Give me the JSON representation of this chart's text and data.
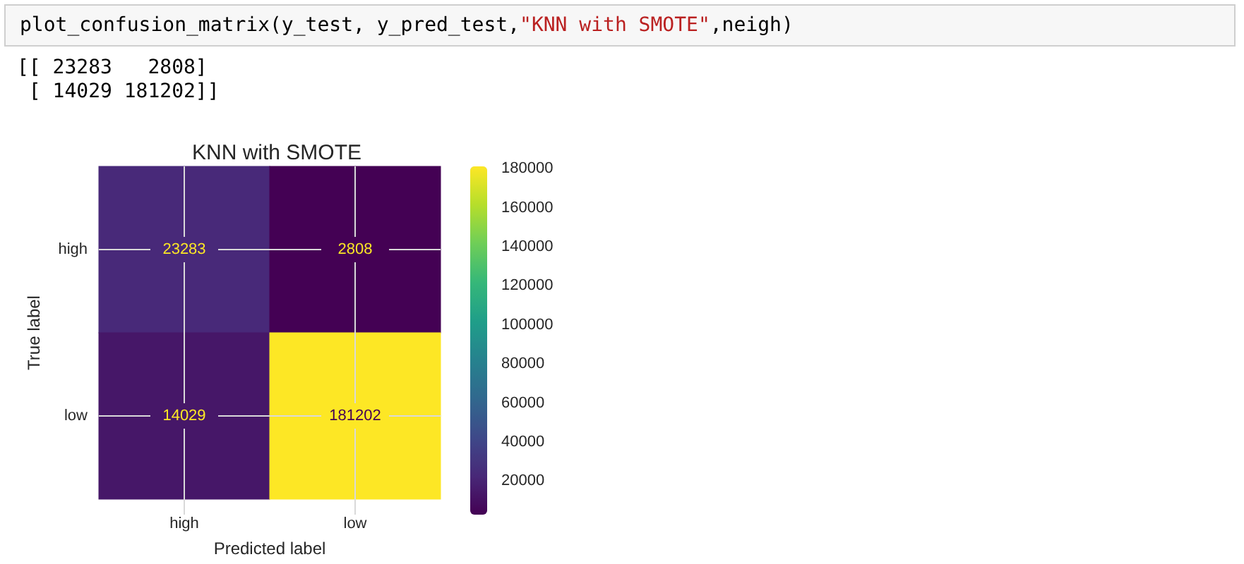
{
  "chart_data": {
    "type": "heatmap",
    "title": "KNN with SMOTE",
    "xlabel": "Predicted label",
    "ylabel": "True label",
    "categories": [
      "high",
      "low"
    ],
    "y_categories": [
      "high",
      "low"
    ],
    "cells": [
      [
        23283,
        2808
      ],
      [
        14029,
        181202
      ]
    ],
    "clim": [
      2808,
      181202
    ],
    "cticks": [
      20000,
      40000,
      60000,
      80000,
      100000,
      120000,
      140000,
      160000,
      180000
    ],
    "data_labels": true,
    "grid": true,
    "annotations": [
      "plot_confusion_matrix(y_test, y_pred_test,\"KNN with SMOTE\",neigh)",
      "[[ 23283   2808]",
      " [ 14029 181202]]"
    ]
  }
}
